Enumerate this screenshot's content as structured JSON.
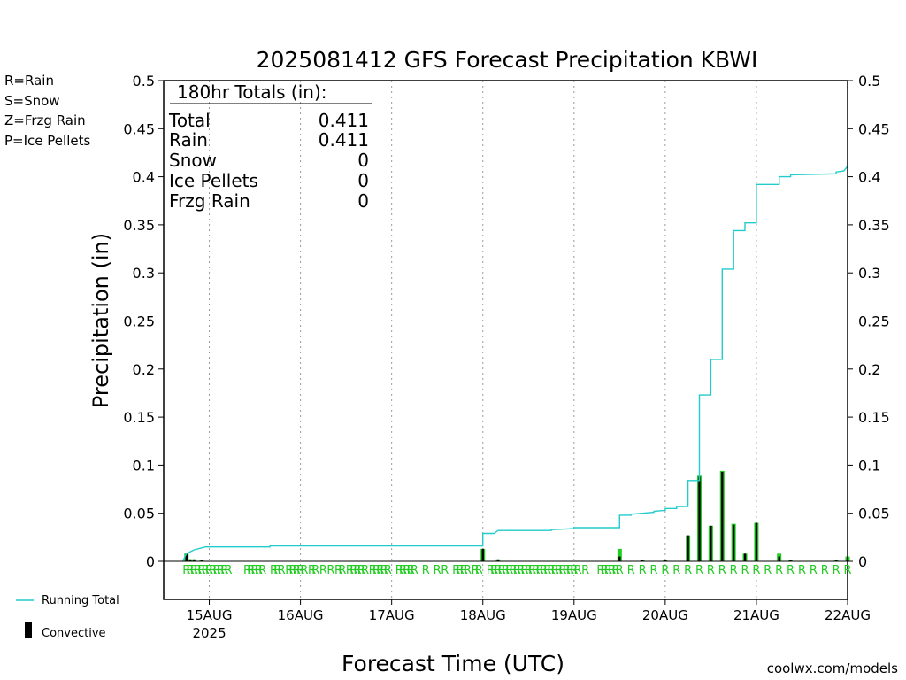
{
  "chart_data": {
    "type": "bar",
    "title": "2025081412 GFS Forecast Precipitation KBWI",
    "xlabel": "Forecast Time (UTC)",
    "ylabel": "Precipitation (in)",
    "ylim": [
      0,
      0.5
    ],
    "yticks": [
      "0",
      "0.05",
      "0.1",
      "0.15",
      "0.2",
      "0.25",
      "0.3",
      "0.35",
      "0.4",
      "0.45",
      "0.5"
    ],
    "xlim": [
      "2025-08-14T12:00Z",
      "2025-08-22T00:00Z"
    ],
    "xticks": [
      {
        "label": "15AUG",
        "sub": "2025"
      },
      {
        "label": "16AUG",
        "sub": ""
      },
      {
        "label": "17AUG",
        "sub": ""
      },
      {
        "label": "18AUG",
        "sub": ""
      },
      {
        "label": "19AUG",
        "sub": ""
      },
      {
        "label": "20AUG",
        "sub": ""
      },
      {
        "label": "21AUG",
        "sub": ""
      },
      {
        "label": "22AUG",
        "sub": ""
      }
    ],
    "grid": "vertical-dotted",
    "precip_type_legend": [
      {
        "label": "R=Rain",
        "color": "#22cc22"
      },
      {
        "label": "S=Snow",
        "color": "#3344dd"
      },
      {
        "label": "Z=Frzg Rain",
        "color": "#ee8833"
      },
      {
        "label": "P=Ice Pellets",
        "color": "#dd2288"
      }
    ],
    "series_legend": [
      {
        "label": "Running Total",
        "color": "#22cccc"
      },
      {
        "label": "Convective",
        "color": "#000000"
      }
    ],
    "totals_box": {
      "heading": "180hr Totals (in):",
      "rows": [
        {
          "label": "Total",
          "value": "0.411"
        },
        {
          "label": "Rain",
          "value": "0.411"
        },
        {
          "label": "Snow",
          "value": "0"
        },
        {
          "label": "Ice Pellets",
          "value": "0"
        },
        {
          "label": "Frzg Rain",
          "value": "0"
        }
      ]
    },
    "type_letter": "R",
    "credit": "coolwx.com/models",
    "bars": [
      {
        "t": "2025-08-14T18:00Z",
        "total": 0.008,
        "conv": 0.008
      },
      {
        "t": "2025-08-14T19:00Z",
        "total": 0.002,
        "conv": 0.002
      },
      {
        "t": "2025-08-14T20:00Z",
        "total": 0.002,
        "conv": 0.002
      },
      {
        "t": "2025-08-14T22:00Z",
        "total": 0.001,
        "conv": 0.001
      },
      {
        "t": "2025-08-18T00:00Z",
        "total": 0.013,
        "conv": 0.013
      },
      {
        "t": "2025-08-18T04:00Z",
        "total": 0.002,
        "conv": 0.002
      },
      {
        "t": "2025-08-19T12:00Z",
        "total": 0.013,
        "conv": 0.005
      },
      {
        "t": "2025-08-19T18:00Z",
        "total": 0.001,
        "conv": 0.001
      },
      {
        "t": "2025-08-20T00:00Z",
        "total": 0.001,
        "conv": 0.001
      },
      {
        "t": "2025-08-20T06:00Z",
        "total": 0.027,
        "conv": 0.027
      },
      {
        "t": "2025-08-20T09:00Z",
        "total": 0.089,
        "conv": 0.088
      },
      {
        "t": "2025-08-20T12:00Z",
        "total": 0.037,
        "conv": 0.037
      },
      {
        "t": "2025-08-20T15:00Z",
        "total": 0.094,
        "conv": 0.093
      },
      {
        "t": "2025-08-20T18:00Z",
        "total": 0.039,
        "conv": 0.038
      },
      {
        "t": "2025-08-20T21:00Z",
        "total": 0.008,
        "conv": 0.008
      },
      {
        "t": "2025-08-21T00:00Z",
        "total": 0.04,
        "conv": 0.04
      },
      {
        "t": "2025-08-21T06:00Z",
        "total": 0.008,
        "conv": 0.005
      },
      {
        "t": "2025-08-21T09:00Z",
        "total": 0.001,
        "conv": 0.001
      },
      {
        "t": "2025-08-21T21:00Z",
        "total": 0.001,
        "conv": 0.001
      },
      {
        "t": "2025-08-22T00:00Z",
        "total": 0.005,
        "conv": 0.002
      }
    ],
    "running_total": [
      {
        "t": "2025-08-14T17:00Z",
        "v": 0.0
      },
      {
        "t": "2025-08-14T18:00Z",
        "v": 0.008
      },
      {
        "t": "2025-08-14T19:00Z",
        "v": 0.01
      },
      {
        "t": "2025-08-14T20:00Z",
        "v": 0.012
      },
      {
        "t": "2025-08-14T22:00Z",
        "v": 0.014
      },
      {
        "t": "2025-08-14T23:00Z",
        "v": 0.015
      },
      {
        "t": "2025-08-15T16:00Z",
        "v": 0.015
      },
      {
        "t": "2025-08-15T16:00Z",
        "v": 0.016
      },
      {
        "t": "2025-08-18T00:00Z",
        "v": 0.016
      },
      {
        "t": "2025-08-18T00:00Z",
        "v": 0.029
      },
      {
        "t": "2025-08-18T03:00Z",
        "v": 0.029
      },
      {
        "t": "2025-08-18T04:00Z",
        "v": 0.032
      },
      {
        "t": "2025-08-18T18:00Z",
        "v": 0.032
      },
      {
        "t": "2025-08-18T18:00Z",
        "v": 0.033
      },
      {
        "t": "2025-08-19T00:00Z",
        "v": 0.034
      },
      {
        "t": "2025-08-19T00:00Z",
        "v": 0.035
      },
      {
        "t": "2025-08-19T12:00Z",
        "v": 0.035
      },
      {
        "t": "2025-08-19T12:00Z",
        "v": 0.048
      },
      {
        "t": "2025-08-19T15:00Z",
        "v": 0.048
      },
      {
        "t": "2025-08-19T15:00Z",
        "v": 0.049
      },
      {
        "t": "2025-08-19T18:00Z",
        "v": 0.05
      },
      {
        "t": "2025-08-19T21:00Z",
        "v": 0.051
      },
      {
        "t": "2025-08-19T21:00Z",
        "v": 0.052
      },
      {
        "t": "2025-08-20T00:00Z",
        "v": 0.053
      },
      {
        "t": "2025-08-20T00:00Z",
        "v": 0.055
      },
      {
        "t": "2025-08-20T03:00Z",
        "v": 0.055
      },
      {
        "t": "2025-08-20T03:00Z",
        "v": 0.057
      },
      {
        "t": "2025-08-20T06:00Z",
        "v": 0.057
      },
      {
        "t": "2025-08-20T06:00Z",
        "v": 0.084
      },
      {
        "t": "2025-08-20T09:00Z",
        "v": 0.084
      },
      {
        "t": "2025-08-20T09:00Z",
        "v": 0.173
      },
      {
        "t": "2025-08-20T12:00Z",
        "v": 0.173
      },
      {
        "t": "2025-08-20T12:00Z",
        "v": 0.21
      },
      {
        "t": "2025-08-20T15:00Z",
        "v": 0.21
      },
      {
        "t": "2025-08-20T15:00Z",
        "v": 0.304
      },
      {
        "t": "2025-08-20T18:00Z",
        "v": 0.304
      },
      {
        "t": "2025-08-20T18:00Z",
        "v": 0.344
      },
      {
        "t": "2025-08-20T21:00Z",
        "v": 0.344
      },
      {
        "t": "2025-08-20T21:00Z",
        "v": 0.352
      },
      {
        "t": "2025-08-21T00:00Z",
        "v": 0.352
      },
      {
        "t": "2025-08-21T00:00Z",
        "v": 0.392
      },
      {
        "t": "2025-08-21T06:00Z",
        "v": 0.392
      },
      {
        "t": "2025-08-21T06:00Z",
        "v": 0.4
      },
      {
        "t": "2025-08-21T09:00Z",
        "v": 0.4
      },
      {
        "t": "2025-08-21T09:00Z",
        "v": 0.402
      },
      {
        "t": "2025-08-21T21:00Z",
        "v": 0.403
      },
      {
        "t": "2025-08-21T21:00Z",
        "v": 0.405
      },
      {
        "t": "2025-08-21T23:00Z",
        "v": 0.406
      },
      {
        "t": "2025-08-22T00:00Z",
        "v": 0.411
      }
    ],
    "type_marks": [
      "2025-08-14T18:00Z",
      "2025-08-14T19:00Z",
      "2025-08-14T20:00Z",
      "2025-08-14T21:00Z",
      "2025-08-14T22:00Z",
      "2025-08-14T23:00Z",
      "2025-08-15T00:00Z",
      "2025-08-15T01:00Z",
      "2025-08-15T02:00Z",
      "2025-08-15T03:00Z",
      "2025-08-15T04:00Z",
      "2025-08-15T05:00Z",
      "2025-08-15T10:00Z",
      "2025-08-15T11:00Z",
      "2025-08-15T12:00Z",
      "2025-08-15T13:00Z",
      "2025-08-15T14:00Z",
      "2025-08-15T17:00Z",
      "2025-08-15T18:00Z",
      "2025-08-15T19:00Z",
      "2025-08-15T21:00Z",
      "2025-08-15T22:00Z",
      "2025-08-15T23:00Z",
      "2025-08-16T00:00Z",
      "2025-08-16T01:00Z",
      "2025-08-16T03:00Z",
      "2025-08-16T04:00Z",
      "2025-08-16T06:00Z",
      "2025-08-16T08:00Z",
      "2025-08-16T10:00Z",
      "2025-08-16T11:00Z",
      "2025-08-16T13:00Z",
      "2025-08-16T14:00Z",
      "2025-08-16T15:00Z",
      "2025-08-16T16:00Z",
      "2025-08-16T17:00Z",
      "2025-08-16T19:00Z",
      "2025-08-16T20:00Z",
      "2025-08-16T21:00Z",
      "2025-08-16T22:00Z",
      "2025-08-16T23:00Z",
      "2025-08-17T02:00Z",
      "2025-08-17T03:00Z",
      "2025-08-17T04:00Z",
      "2025-08-17T05:00Z",
      "2025-08-17T06:00Z",
      "2025-08-17T09:00Z",
      "2025-08-17T12:00Z",
      "2025-08-17T14:00Z",
      "2025-08-17T17:00Z",
      "2025-08-17T18:00Z",
      "2025-08-17T19:00Z",
      "2025-08-17T20:00Z",
      "2025-08-17T22:00Z",
      "2025-08-17T23:00Z",
      "2025-08-18T02:00Z",
      "2025-08-18T03:00Z",
      "2025-08-18T04:00Z",
      "2025-08-18T05:00Z",
      "2025-08-18T06:00Z",
      "2025-08-18T07:00Z",
      "2025-08-18T08:00Z",
      "2025-08-18T09:00Z",
      "2025-08-18T10:00Z",
      "2025-08-18T11:00Z",
      "2025-08-18T12:00Z",
      "2025-08-18T13:00Z",
      "2025-08-18T14:00Z",
      "2025-08-18T15:00Z",
      "2025-08-18T16:00Z",
      "2025-08-18T17:00Z",
      "2025-08-18T18:00Z",
      "2025-08-18T19:00Z",
      "2025-08-18T20:00Z",
      "2025-08-18T21:00Z",
      "2025-08-18T22:00Z",
      "2025-08-18T23:00Z",
      "2025-08-19T00:00Z",
      "2025-08-19T01:00Z",
      "2025-08-19T03:00Z",
      "2025-08-19T07:00Z",
      "2025-08-19T08:00Z",
      "2025-08-19T09:00Z",
      "2025-08-19T10:00Z",
      "2025-08-19T11:00Z",
      "2025-08-19T12:00Z",
      "2025-08-19T15:00Z",
      "2025-08-19T18:00Z",
      "2025-08-19T21:00Z",
      "2025-08-20T00:00Z",
      "2025-08-20T03:00Z",
      "2025-08-20T06:00Z",
      "2025-08-20T09:00Z",
      "2025-08-20T12:00Z",
      "2025-08-20T15:00Z",
      "2025-08-20T18:00Z",
      "2025-08-20T21:00Z",
      "2025-08-21T00:00Z",
      "2025-08-21T03:00Z",
      "2025-08-21T06:00Z",
      "2025-08-21T09:00Z",
      "2025-08-21T12:00Z",
      "2025-08-21T15:00Z",
      "2025-08-21T18:00Z",
      "2025-08-21T21:00Z",
      "2025-08-22T00:00Z"
    ]
  }
}
